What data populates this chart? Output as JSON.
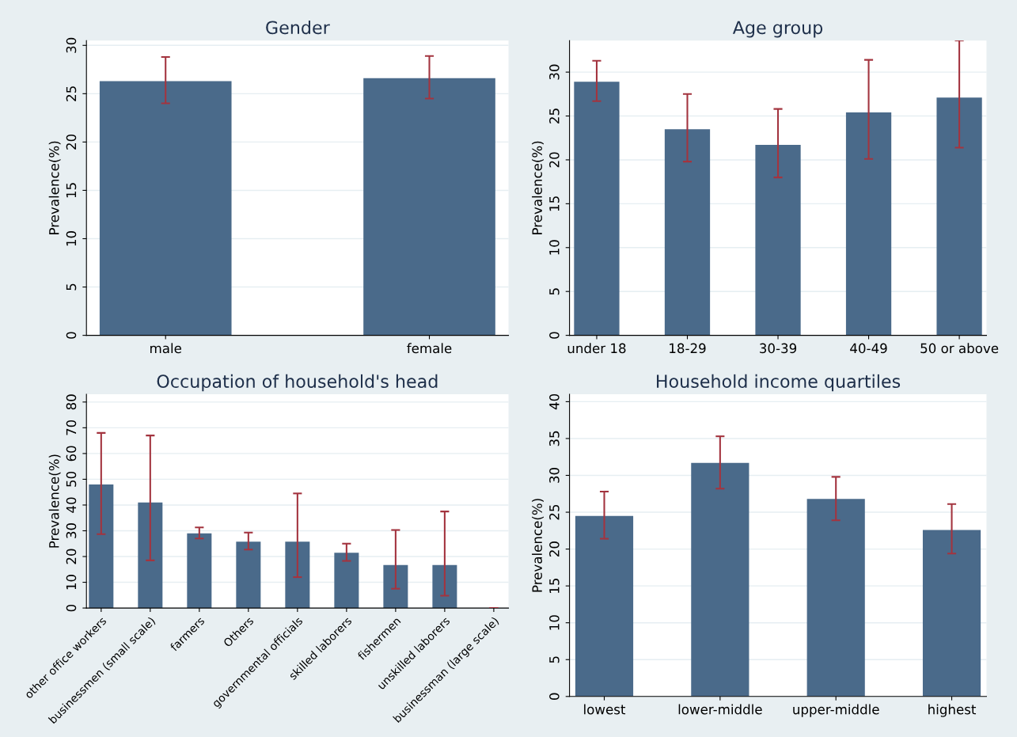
{
  "chart_data": [
    {
      "type": "bar",
      "title": "Gender",
      "ylabel": "Prevalence(%)",
      "categories": [
        "male",
        "female"
      ],
      "color": "#4a6a8a",
      "values": [
        26.3,
        26.6
      ],
      "errors": [
        [
          24.0,
          28.8
        ],
        [
          24.5,
          28.9
        ]
      ],
      "ylim": [
        0,
        30.5
      ],
      "yticks": [
        0,
        5,
        10,
        15,
        20,
        25,
        30
      ],
      "grid": "y"
    },
    {
      "type": "bar",
      "title": "Age group",
      "ylabel": "Prevalence(%)",
      "categories": [
        "under 18",
        "18-29",
        "30-39",
        "40-49",
        "50 or above"
      ],
      "color": "#4a6a8a",
      "values": [
        28.9,
        23.5,
        21.7,
        25.4,
        27.1
      ],
      "errors": [
        [
          26.7,
          31.3
        ],
        [
          19.8,
          27.5
        ],
        [
          18.0,
          25.8
        ],
        [
          20.1,
          31.4
        ],
        [
          21.4,
          33.6
        ]
      ],
      "ylim": [
        0,
        33.6
      ],
      "yticks": [
        0,
        5,
        10,
        15,
        20,
        25,
        30
      ],
      "grid": "y"
    },
    {
      "type": "bar",
      "title": "Occupation of household's head",
      "ylabel": "Prevalence(%)",
      "categories": [
        "other office workers",
        "businessmen (small scale)",
        "farmers",
        "Others",
        "governmental officials",
        "skilled laborers",
        "fishermen",
        "unskilled laborers",
        "businessman (large scale)"
      ],
      "color": "#4a6a8a",
      "values": [
        48,
        41,
        29,
        25.8,
        25.8,
        21.5,
        16.7,
        16.7,
        0
      ],
      "errors": [
        [
          28.7,
          68
        ],
        [
          18.5,
          67
        ],
        [
          27,
          31.3
        ],
        [
          22.7,
          29.3
        ],
        [
          12,
          44.5
        ],
        [
          18.3,
          25
        ],
        [
          7.5,
          30.3
        ],
        [
          4.8,
          37.5
        ],
        [
          0,
          0
        ]
      ],
      "ylim": [
        0,
        83
      ],
      "yticks": [
        0,
        10,
        20,
        30,
        40,
        50,
        60,
        70,
        80
      ],
      "grid": "y"
    },
    {
      "type": "bar",
      "title": "Household income quartiles",
      "ylabel": "Prevalence(%)",
      "categories": [
        "lowest",
        "lower-middle",
        "upper-middle",
        "highest"
      ],
      "color": "#4a6a8a",
      "values": [
        24.5,
        31.7,
        26.8,
        22.6
      ],
      "errors": [
        [
          21.4,
          27.8
        ],
        [
          28.2,
          35.3
        ],
        [
          23.9,
          29.8
        ],
        [
          19.4,
          26.1
        ]
      ],
      "ylim": [
        0,
        41
      ],
      "yticks": [
        0,
        5,
        10,
        15,
        20,
        25,
        30,
        35,
        40
      ],
      "grid": "y"
    }
  ]
}
